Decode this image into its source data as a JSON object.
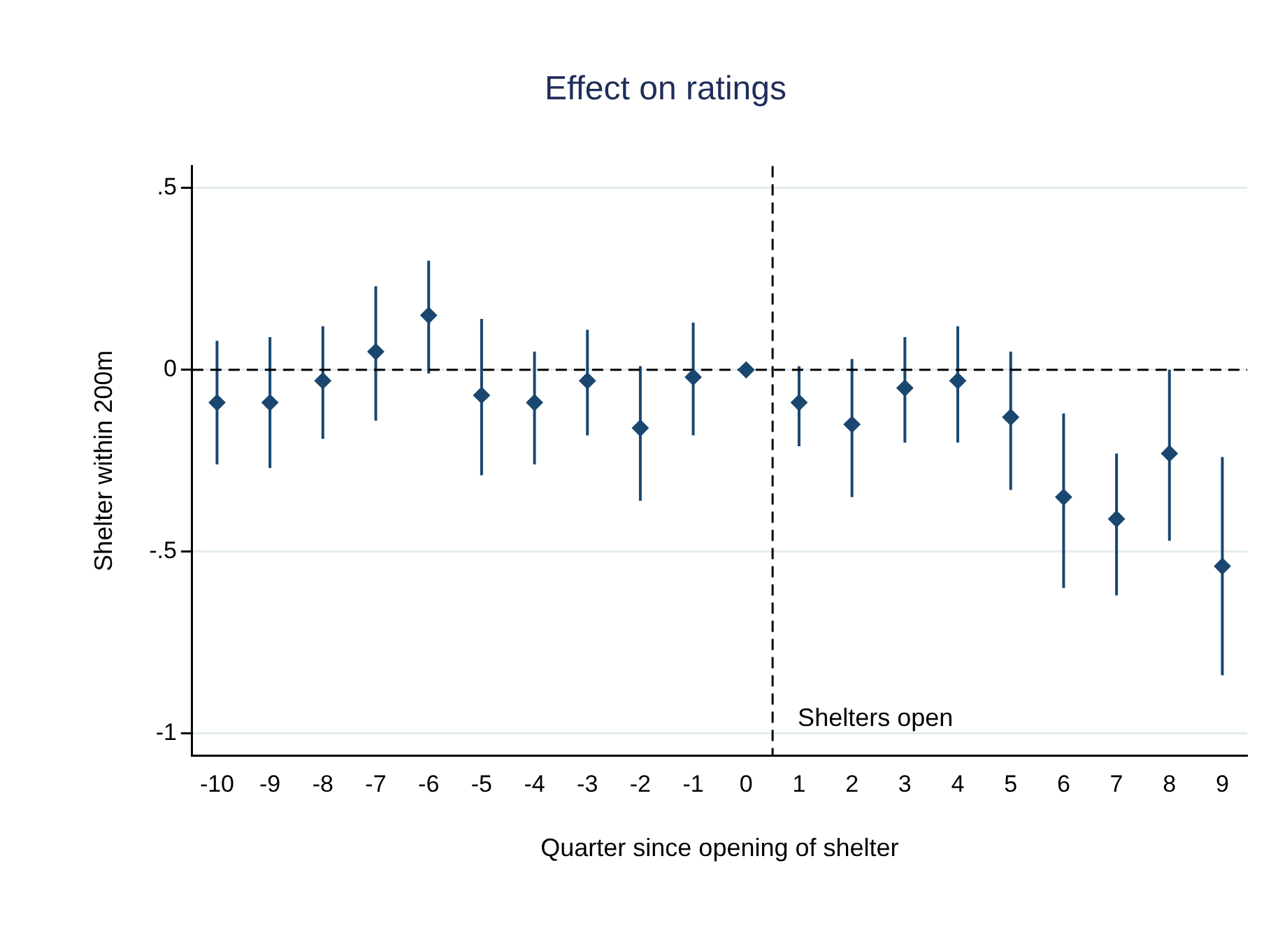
{
  "chart_data": {
    "type": "scatter",
    "title": "Effect on ratings",
    "xlabel": "Quarter since opening of shelter",
    "ylabel": "Shelter within 200m",
    "x": [
      -10,
      -9,
      -8,
      -7,
      -6,
      -5,
      -4,
      -3,
      -2,
      -1,
      0,
      1,
      2,
      3,
      4,
      5,
      6,
      7,
      8,
      9
    ],
    "series": [
      {
        "color": "#1a476f",
        "values": [
          -0.09,
          -0.09,
          -0.03,
          0.05,
          0.15,
          -0.07,
          -0.09,
          -0.03,
          -0.16,
          -0.02,
          0,
          -0.09,
          -0.15,
          -0.05,
          -0.03,
          -0.13,
          -0.35,
          -0.41,
          -0.23,
          -0.54
        ],
        "errors": [
          [
            -0.26,
            0.08
          ],
          [
            -0.27,
            0.09
          ],
          [
            -0.19,
            0.12
          ],
          [
            -0.14,
            0.23
          ],
          [
            -0.01,
            0.3
          ],
          [
            -0.29,
            0.14
          ],
          [
            -0.26,
            0.05
          ],
          [
            -0.18,
            0.11
          ],
          [
            -0.36,
            0.01
          ],
          [
            -0.18,
            0.13
          ],
          null,
          [
            -0.21,
            0.01
          ],
          [
            -0.35,
            0.03
          ],
          [
            -0.2,
            0.09
          ],
          [
            -0.2,
            0.12
          ],
          [
            -0.33,
            0.05
          ],
          [
            -0.6,
            -0.12
          ],
          [
            -0.62,
            -0.23
          ],
          [
            -0.47,
            0
          ],
          [
            -0.84,
            -0.24
          ]
        ]
      }
    ],
    "xlim": [
      -10.47,
      9.47
    ],
    "xticks": [
      -10,
      -9,
      -8,
      -7,
      -6,
      -5,
      -4,
      -3,
      -2,
      -1,
      0,
      1,
      2,
      3,
      4,
      5,
      6,
      7,
      8,
      9
    ],
    "ylim": [
      -1.06,
      0.56
    ],
    "yticks": [
      {
        "value": -1,
        "label": "-1"
      },
      {
        "value": -0.5,
        "label": "-.5"
      },
      {
        "value": 0,
        "label": "0"
      },
      {
        "value": 0.5,
        "label": ".5"
      }
    ],
    "grid": "y",
    "marker": "diamond",
    "ref_lines": [
      {
        "axis": "y",
        "value": 0,
        "line_style": "dashed",
        "color": "#000000"
      },
      {
        "axis": "x",
        "value": 0.5,
        "line_style": "dashed",
        "color": "#000000"
      }
    ],
    "annotations": [
      "Shelters open"
    ]
  }
}
